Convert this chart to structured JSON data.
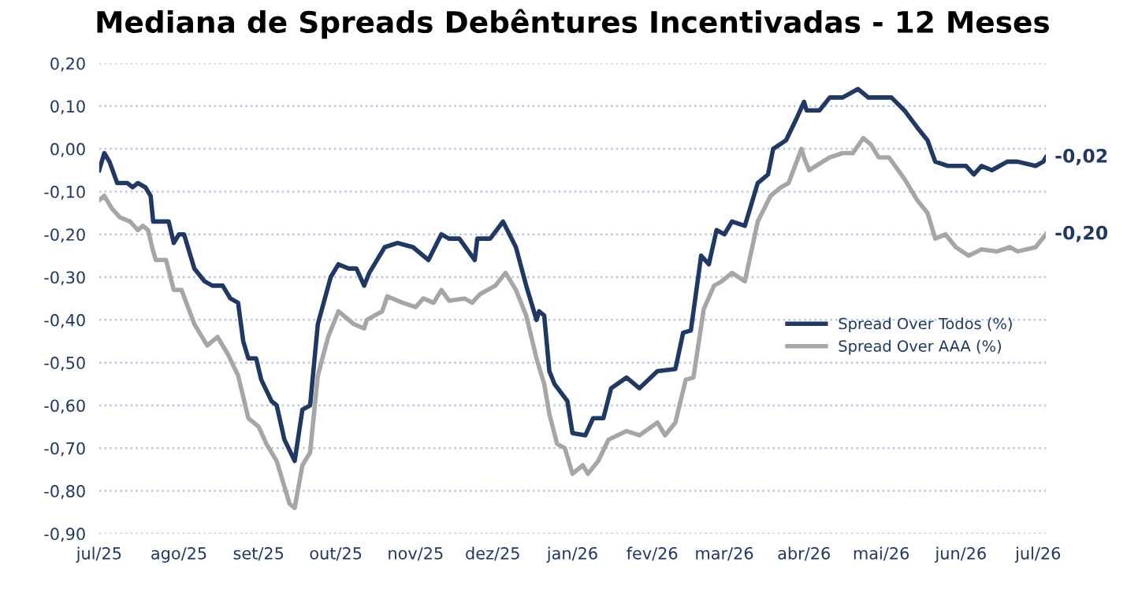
{
  "chart_data": {
    "type": "line",
    "title": "Mediana de Spreads Debêntures Incentivadas - 12 Meses",
    "series": [
      {
        "name": "Spread Over Todos (%)",
        "color": "#1f3864",
        "x": [
          "2025-07-01",
          "2025-07-03",
          "2025-07-05",
          "2025-07-08",
          "2025-07-12",
          "2025-07-14",
          "2025-07-16",
          "2025-07-19",
          "2025-07-21",
          "2025-07-22",
          "2025-07-28",
          "2025-07-30",
          "2025-08-01",
          "2025-08-03",
          "2025-08-07",
          "2025-08-11",
          "2025-08-14",
          "2025-08-18",
          "2025-08-21",
          "2025-08-24",
          "2025-08-26",
          "2025-08-28",
          "2025-08-31",
          "2025-09-02",
          "2025-09-06",
          "2025-09-08",
          "2025-09-11",
          "2025-09-15",
          "2025-09-18",
          "2025-09-21",
          "2025-09-24",
          "2025-09-29",
          "2025-10-02",
          "2025-10-06",
          "2025-10-09",
          "2025-10-12",
          "2025-10-14",
          "2025-10-20",
          "2025-10-25",
          "2025-10-31",
          "2025-11-06",
          "2025-11-11",
          "2025-11-14",
          "2025-11-18",
          "2025-11-24",
          "2025-11-25",
          "2025-11-30",
          "2025-12-05",
          "2025-12-10",
          "2025-12-14",
          "2025-12-18",
          "2025-12-19",
          "2025-12-21",
          "2025-12-23",
          "2025-12-25",
          "2025-12-30",
          "2026-01-01",
          "2026-01-06",
          "2026-01-09",
          "2026-01-13",
          "2026-01-16",
          "2026-01-22",
          "2026-01-27",
          "2026-02-03",
          "2026-02-10",
          "2026-02-13",
          "2026-02-16",
          "2026-02-20",
          "2026-02-23",
          "2026-02-26",
          "2026-03-01",
          "2026-03-04",
          "2026-03-09",
          "2026-03-14",
          "2026-03-18",
          "2026-03-20",
          "2026-03-25",
          "2026-03-29",
          "2026-04-01",
          "2026-04-02",
          "2026-04-07",
          "2026-04-11",
          "2026-04-16",
          "2026-04-22",
          "2026-04-26",
          "2026-04-30",
          "2026-05-05",
          "2026-05-10",
          "2026-05-15",
          "2026-05-19",
          "2026-05-22",
          "2026-05-27",
          "2026-06-03",
          "2026-06-06",
          "2026-06-09",
          "2026-06-13",
          "2026-06-19",
          "2026-06-23",
          "2026-06-30",
          "2026-07-03",
          "2026-07-04"
        ],
        "values": [
          -0.05,
          -0.01,
          -0.03,
          -0.08,
          -0.08,
          -0.09,
          -0.08,
          -0.09,
          -0.11,
          -0.17,
          -0.17,
          -0.22,
          -0.2,
          -0.2,
          -0.28,
          -0.31,
          -0.32,
          -0.32,
          -0.35,
          -0.36,
          -0.45,
          -0.49,
          -0.49,
          -0.54,
          -0.59,
          -0.6,
          -0.68,
          -0.73,
          -0.61,
          -0.6,
          -0.41,
          -0.3,
          -0.27,
          -0.28,
          -0.28,
          -0.32,
          -0.29,
          -0.23,
          -0.22,
          -0.23,
          -0.26,
          -0.2,
          -0.21,
          -0.21,
          -0.26,
          -0.21,
          -0.21,
          -0.17,
          -0.23,
          -0.32,
          -0.4,
          -0.38,
          -0.39,
          -0.52,
          -0.55,
          -0.59,
          -0.665,
          -0.67,
          -0.63,
          -0.63,
          -0.56,
          -0.535,
          -0.56,
          -0.52,
          -0.515,
          -0.43,
          -0.425,
          -0.25,
          -0.27,
          -0.19,
          -0.2,
          -0.17,
          -0.18,
          -0.08,
          -0.06,
          0.0,
          0.02,
          0.07,
          0.11,
          0.09,
          0.09,
          0.12,
          0.12,
          0.14,
          0.12,
          0.12,
          0.12,
          0.09,
          0.05,
          0.02,
          -0.03,
          -0.04,
          -0.04,
          -0.06,
          -0.04,
          -0.05,
          -0.03,
          -0.03,
          -0.04,
          -0.03,
          -0.02
        ]
      },
      {
        "name": "Spread Over AAA (%)",
        "color": "#a6a6a6",
        "x": [
          "2025-07-01",
          "2025-07-03",
          "2025-07-06",
          "2025-07-09",
          "2025-07-13",
          "2025-07-16",
          "2025-07-18",
          "2025-07-20",
          "2025-07-22",
          "2025-07-23",
          "2025-07-27",
          "2025-07-30",
          "2025-08-02",
          "2025-08-07",
          "2025-08-12",
          "2025-08-16",
          "2025-08-20",
          "2025-08-24",
          "2025-08-28",
          "2025-09-01",
          "2025-09-04",
          "2025-09-08",
          "2025-09-13",
          "2025-09-15",
          "2025-09-18",
          "2025-09-21",
          "2025-09-24",
          "2025-09-28",
          "2025-10-02",
          "2025-10-08",
          "2025-10-12",
          "2025-10-13",
          "2025-10-19",
          "2025-10-21",
          "2025-10-27",
          "2025-11-01",
          "2025-11-04",
          "2025-11-08",
          "2025-11-11",
          "2025-11-14",
          "2025-11-20",
          "2025-11-23",
          "2025-11-26",
          "2025-12-02",
          "2025-12-06",
          "2025-12-10",
          "2025-12-14",
          "2025-12-18",
          "2025-12-21",
          "2025-12-23",
          "2025-12-26",
          "2025-12-29",
          "2026-01-01",
          "2026-01-05",
          "2026-01-07",
          "2026-01-11",
          "2026-01-15",
          "2026-01-22",
          "2026-01-27",
          "2026-02-03",
          "2026-02-06",
          "2026-02-10",
          "2026-02-14",
          "2026-02-17",
          "2026-02-21",
          "2026-02-25",
          "2026-02-28",
          "2026-03-04",
          "2026-03-09",
          "2026-03-14",
          "2026-03-19",
          "2026-03-23",
          "2026-03-26",
          "2026-03-31",
          "2026-04-01",
          "2026-04-03",
          "2026-04-11",
          "2026-04-16",
          "2026-04-20",
          "2026-04-24",
          "2026-04-27",
          "2026-04-30",
          "2026-05-04",
          "2026-05-10",
          "2026-05-15",
          "2026-05-19",
          "2026-05-22",
          "2026-05-26",
          "2026-05-30",
          "2026-06-04",
          "2026-06-09",
          "2026-06-15",
          "2026-06-20",
          "2026-06-23",
          "2026-06-30",
          "2026-07-04"
        ],
        "values": [
          -0.12,
          -0.11,
          -0.14,
          -0.16,
          -0.17,
          -0.19,
          -0.18,
          -0.19,
          -0.24,
          -0.26,
          -0.26,
          -0.33,
          -0.33,
          -0.41,
          -0.46,
          -0.44,
          -0.48,
          -0.53,
          -0.63,
          -0.65,
          -0.69,
          -0.73,
          -0.83,
          -0.84,
          -0.74,
          -0.71,
          -0.53,
          -0.44,
          -0.38,
          -0.41,
          -0.42,
          -0.4,
          -0.38,
          -0.345,
          -0.36,
          -0.37,
          -0.35,
          -0.36,
          -0.33,
          -0.355,
          -0.35,
          -0.36,
          -0.34,
          -0.32,
          -0.29,
          -0.33,
          -0.39,
          -0.49,
          -0.55,
          -0.62,
          -0.69,
          -0.7,
          -0.76,
          -0.74,
          -0.76,
          -0.73,
          -0.68,
          -0.66,
          -0.67,
          -0.64,
          -0.67,
          -0.64,
          -0.54,
          -0.535,
          -0.375,
          -0.32,
          -0.31,
          -0.29,
          -0.31,
          -0.17,
          -0.11,
          -0.09,
          -0.08,
          0.0,
          -0.02,
          -0.05,
          -0.02,
          -0.01,
          -0.01,
          0.025,
          0.01,
          -0.02,
          -0.02,
          -0.07,
          -0.12,
          -0.15,
          -0.21,
          -0.2,
          -0.23,
          -0.25,
          -0.235,
          -0.24,
          -0.23,
          -0.24,
          -0.23,
          -0.2
        ]
      }
    ],
    "xlim": [
      "2025-07-01",
      "2026-07-04"
    ],
    "xticks": [
      {
        "value": "2025-07-01",
        "label": "jul/25"
      },
      {
        "value": "2025-08-01",
        "label": "ago/25"
      },
      {
        "value": "2025-09-01",
        "label": "set/25"
      },
      {
        "value": "2025-10-01",
        "label": "out/25"
      },
      {
        "value": "2025-11-01",
        "label": "nov/25"
      },
      {
        "value": "2025-12-01",
        "label": "dez/25"
      },
      {
        "value": "2026-01-01",
        "label": "jan/26"
      },
      {
        "value": "2026-02-01",
        "label": "fev/26"
      },
      {
        "value": "2026-03-01",
        "label": "mar/26"
      },
      {
        "value": "2026-04-01",
        "label": "abr/26"
      },
      {
        "value": "2026-05-01",
        "label": "mai/26"
      },
      {
        "value": "2026-06-01",
        "label": "jun/26"
      },
      {
        "value": "2026-07-01",
        "label": "jul/26"
      }
    ],
    "ylim": [
      -0.9,
      0.2
    ],
    "yticks": [
      {
        "value": 0.2,
        "label": "0,20"
      },
      {
        "value": 0.1,
        "label": "0,10"
      },
      {
        "value": 0,
        "label": "0,00"
      },
      {
        "value": -0.1,
        "label": "-0,10"
      },
      {
        "value": -0.2,
        "label": "-0,20"
      },
      {
        "value": -0.3,
        "label": "-0,30"
      },
      {
        "value": -0.4,
        "label": "-0,40"
      },
      {
        "value": -0.5,
        "label": "-0,50"
      },
      {
        "value": -0.6,
        "label": "-0,60"
      },
      {
        "value": -0.7,
        "label": "-0,70"
      },
      {
        "value": -0.8,
        "label": "-0,80"
      },
      {
        "value": -0.9,
        "label": "-0,90"
      }
    ],
    "annotations": [
      {
        "text": "-0,02",
        "x": "2026-07-04",
        "y": -0.02
      },
      {
        "text": "-0,20",
        "x": "2026-07-04",
        "y": -0.2
      }
    ],
    "grid": "y",
    "legend": "right",
    "marker": "none",
    "line_style": "solid"
  }
}
